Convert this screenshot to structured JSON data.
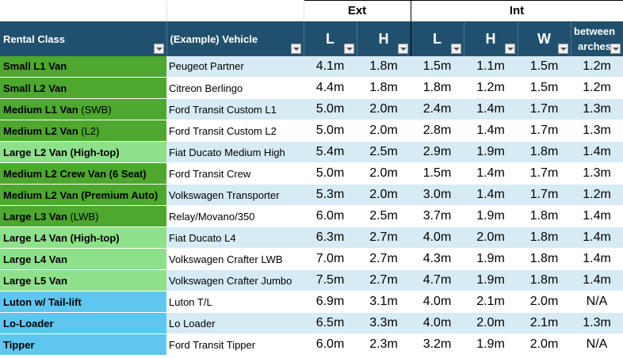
{
  "group_headers": {
    "ext": "Ext",
    "int": "Int"
  },
  "columns": {
    "rental_class": "Rental Class",
    "vehicle": "(Example) Vehicle",
    "ext_l": "L",
    "ext_h": "H",
    "int_l": "L",
    "int_h": "H",
    "int_w": "W",
    "between_1": "between",
    "between_2": "arches"
  },
  "colors": {
    "header_bg": "#21506e",
    "class_dark_green": "#4ea72e",
    "class_light_green": "#8fe08a",
    "class_blue": "#5ec6ef",
    "band_blue": "#d7ebf5"
  },
  "rows": [
    {
      "cls": "Small L1 Van",
      "sfx": "",
      "color": "dark",
      "veh": "Peugeot Partner",
      "el": "4.1m",
      "eh": "1.8m",
      "il": "1.5m",
      "ih": "1.1m",
      "iw": "1.5m",
      "ba": "1.2m"
    },
    {
      "cls": "Small L2 Van",
      "sfx": "",
      "color": "dark",
      "veh": "Citreon Berlingo",
      "el": "4.4m",
      "eh": "1.8m",
      "il": "1.8m",
      "ih": "1.2m",
      "iw": "1.5m",
      "ba": "1.2m"
    },
    {
      "cls": "Medium L1 Van ",
      "sfx": "(SWB)",
      "color": "dark",
      "veh": "Ford Transit Custom L1",
      "el": "5.0m",
      "eh": "2.0m",
      "il": "2.4m",
      "ih": "1.4m",
      "iw": "1.7m",
      "ba": "1.3m"
    },
    {
      "cls": "Medium L2 Van ",
      "sfx": "(L2)",
      "color": "dark",
      "veh": "Ford Transit Custom L2",
      "el": "5.0m",
      "eh": "2.0m",
      "il": "2.8m",
      "ih": "1.4m",
      "iw": "1.7m",
      "ba": "1.3m"
    },
    {
      "cls": "Large L2 Van (High-top)",
      "sfx": "",
      "color": "light",
      "veh": "Fiat Ducato Medium High",
      "el": "5.4m",
      "eh": "2.5m",
      "il": "2.9m",
      "ih": "1.9m",
      "iw": "1.8m",
      "ba": "1.4m"
    },
    {
      "cls": "Medium L2 Crew Van (6 Seat)",
      "sfx": "",
      "color": "dark",
      "veh": "Ford Transit Crew",
      "el": "5.0m",
      "eh": "2.0m",
      "il": "1.5m",
      "ih": "1.4m",
      "iw": "1.7m",
      "ba": "1.3m"
    },
    {
      "cls": "Medium L2 Van (Premium Auto)",
      "sfx": "",
      "color": "dark",
      "veh": "Volkswagen Transporter",
      "el": "5.3m",
      "eh": "2.0m",
      "il": "3.0m",
      "ih": "1.4m",
      "iw": "1.7m",
      "ba": "1.2m"
    },
    {
      "cls": "Large L3 Van ",
      "sfx": "(LWB)",
      "color": "dark",
      "veh": "Relay/Movano/350",
      "el": "6.0m",
      "eh": "2.5m",
      "il": "3.7m",
      "ih": "1.9m",
      "iw": "1.8m",
      "ba": "1.4m"
    },
    {
      "cls": "Large L4 Van (High-top)",
      "sfx": "",
      "color": "light",
      "veh": "Fiat Ducato L4",
      "el": "6.3m",
      "eh": "2.7m",
      "il": "4.0m",
      "ih": "2.0m",
      "iw": "1.8m",
      "ba": "1.4m"
    },
    {
      "cls": "Large L4 Van",
      "sfx": "",
      "color": "light",
      "veh": "Volkswagen Crafter LWB",
      "el": "7.0m",
      "eh": "2.7m",
      "il": "4.3m",
      "ih": "1.9m",
      "iw": "1.8m",
      "ba": "1.4m"
    },
    {
      "cls": "Large L5 Van",
      "sfx": "",
      "color": "light",
      "veh": "Volkswagen Crafter Jumbo",
      "el": "7.5m",
      "eh": "2.7m",
      "il": "4.7m",
      "ih": "1.9m",
      "iw": "1.8m",
      "ba": "1.4m"
    },
    {
      "cls": "Luton w/ Tail-lift",
      "sfx": "",
      "color": "blue",
      "veh": "Luton T/L",
      "el": "6.9m",
      "eh": "3.1m",
      "il": "4.0m",
      "ih": "2.1m",
      "iw": "2.0m",
      "ba": "N/A"
    },
    {
      "cls": "Lo-Loader",
      "sfx": "",
      "color": "blue",
      "veh": "Lo Loader",
      "el": "6.5m",
      "eh": "3.3m",
      "il": "4.0m",
      "ih": "2.0m",
      "iw": "2.1m",
      "ba": "1.3m"
    },
    {
      "cls": "Tipper",
      "sfx": "",
      "color": "blue",
      "veh": "Ford Transit Tipper",
      "el": "6.0m",
      "eh": "2.3m",
      "il": "3.2m",
      "ih": "1.9m",
      "iw": "2.0m",
      "ba": "N/A"
    }
  ]
}
